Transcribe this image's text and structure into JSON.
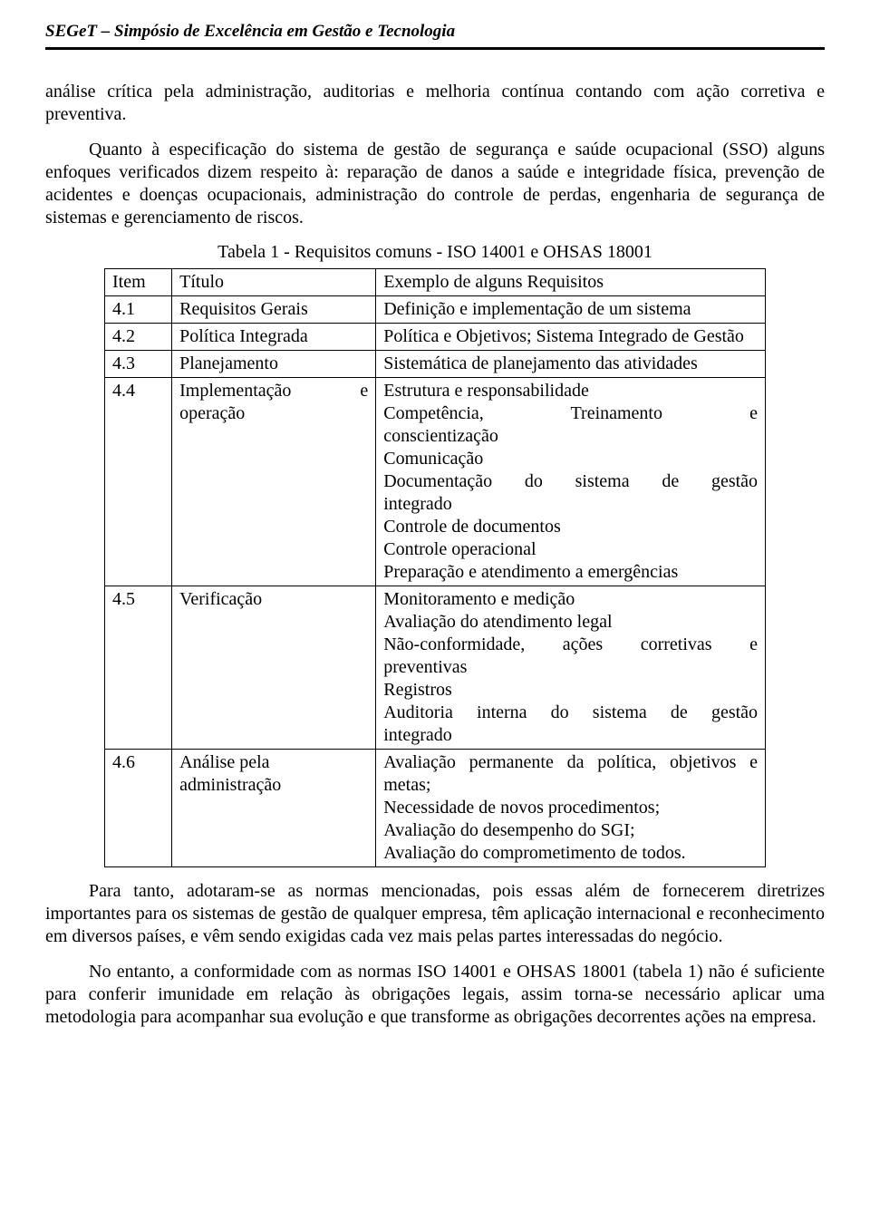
{
  "header": {
    "text": "SEGeT – Simpósio de Excelência em Gestão e Tecnologia"
  },
  "paragraphs": {
    "p1": "análise crítica pela administração, auditorias e melhoria contínua contando com ação corretiva e preventiva.",
    "p2": "Quanto à especificação do sistema de gestão de segurança e saúde ocupacional (SSO) alguns enfoques verificados dizem respeito à: reparação de danos a saúde e integridade física, prevenção de acidentes e doenças ocupacionais, administração do controle de perdas, engenharia de segurança de sistemas e gerenciamento de riscos.",
    "p3": "Para tanto, adotaram-se as normas mencionadas, pois essas além de fornecerem diretrizes importantes para os sistemas de gestão de qualquer empresa, têm aplicação internacional e reconhecimento em diversos países, e vêm sendo exigidas cada vez mais pelas partes interessadas do negócio.",
    "p4": "No entanto, a conformidade com as normas ISO 14001 e OHSAS 18001 (tabela 1) não é suficiente para conferir imunidade em relação às obrigações legais, assim torna-se necessário aplicar uma metodologia para acompanhar sua evolução e que transforme as obrigações decorrentes ações na empresa."
  },
  "table": {
    "caption": "Tabela 1 - Requisitos comuns - ISO 14001 e OHSAS 18001",
    "head": {
      "c0": "Item",
      "c1": "Título",
      "c2": "Exemplo de alguns Requisitos"
    },
    "rows": [
      {
        "c0": "4.1",
        "c1": "Requisitos Gerais",
        "c2": "Definição e implementação de um sistema"
      },
      {
        "c0": "4.2",
        "c1": "Política Integrada",
        "c2": "Política e Objetivos; Sistema Integrado de Gestão"
      },
      {
        "c0": "4.3",
        "c1": "Planejamento",
        "c2": "Sistemática de planejamento das atividades"
      },
      {
        "c0": "4.4",
        "c1_line1": "Implementação e",
        "c1_line2": "operação",
        "c2_l1": "Estrutura e responsabilidade",
        "c2_l2a": "Competência,",
        "c2_l2b": "Treinamento",
        "c2_l2c": "e",
        "c2_l3": "conscientização",
        "c2_l4": "Comunicação",
        "c2_l5a": "Documentação",
        "c2_l5b": "do",
        "c2_l5c": "sistema",
        "c2_l5d": "de",
        "c2_l5e": "gestão",
        "c2_l6": "integrado",
        "c2_l7": "Controle de documentos",
        "c2_l8": "Controle operacional",
        "c2_l9": "Preparação e atendimento a emergências"
      },
      {
        "c0": "4.5",
        "c1": "Verificação",
        "c2_l1": "Monitoramento e medição",
        "c2_l2": "Avaliação do atendimento legal",
        "c2_l3a": "Não-conformidade,",
        "c2_l3b": "ações",
        "c2_l3c": "corretivas",
        "c2_l3d": "e",
        "c2_l4": "preventivas",
        "c2_l5": "Registros",
        "c2_l6a": "Auditoria",
        "c2_l6b": "interna",
        "c2_l6c": "do",
        "c2_l6d": "sistema",
        "c2_l6e": "de",
        "c2_l6f": "gestão",
        "c2_l7": "integrado"
      },
      {
        "c0": "4.6",
        "c1_l1": "Análise pela",
        "c1_l2": "administração",
        "c2_l1": "Avaliação permanente da política, objetivos e metas;",
        "c2_l2": "Necessidade de novos procedimentos;",
        "c2_l3": "Avaliação do desempenho do SGI;",
        "c2_l4": "Avaliação do comprometimento de todos."
      }
    ]
  }
}
